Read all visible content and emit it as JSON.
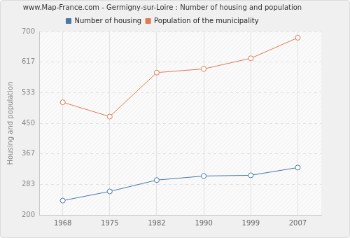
{
  "chart_data": {
    "type": "line",
    "title": "www.Map-France.com - Germigny-sur-Loire : Number of housing and population",
    "y_label": "Housing and population",
    "categories": [
      "1968",
      "1975",
      "1982",
      "1990",
      "1999",
      "2007"
    ],
    "series": [
      {
        "name": "Number of housing",
        "color": "#4a78a3",
        "values": [
          239,
          264,
          295,
          306,
          308,
          329
        ]
      },
      {
        "name": "Population of the municipality",
        "color": "#e07a52",
        "values": [
          507,
          468,
          588,
          598,
          627,
          683
        ]
      }
    ],
    "ylim": [
      200,
      700
    ],
    "yticks": [
      200,
      283,
      367,
      450,
      533,
      617,
      700
    ],
    "grid": true,
    "legend": "top",
    "marker": "circle"
  }
}
